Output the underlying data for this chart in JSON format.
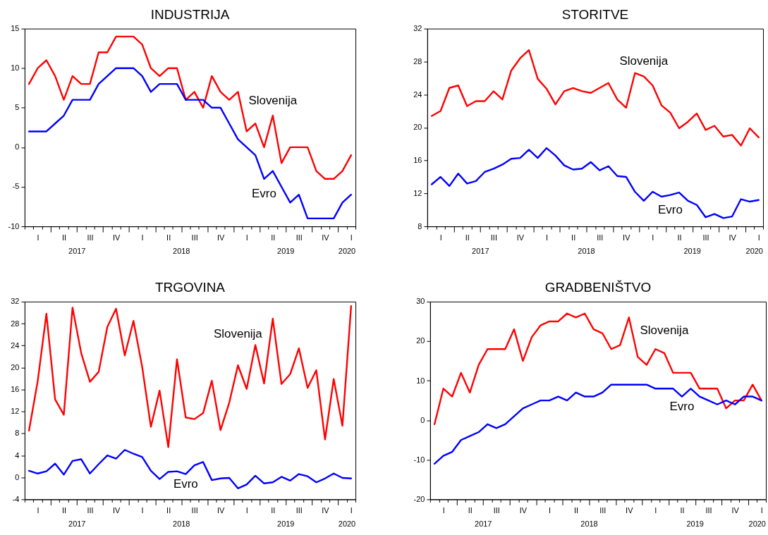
{
  "chart_data": [
    {
      "type": "line",
      "title": "INDUSTRIJA",
      "categories": [
        null,
        "I",
        null,
        null,
        "II",
        null,
        null,
        "III",
        null,
        null,
        "IV",
        null,
        null,
        "I",
        null,
        null,
        "II",
        null,
        null,
        "III",
        null,
        null,
        "IV",
        null,
        null,
        "I",
        null,
        null,
        "II",
        null,
        null,
        "III",
        null,
        null,
        "IV",
        null,
        null,
        "I"
      ],
      "x2lim": [
        "2016-12-16",
        "2020-02-16"
      ],
      "x2ticks": [
        {
          "value": "2017-06-16",
          "label": "2017"
        },
        {
          "value": "2018-06-16",
          "label": "2018"
        },
        {
          "value": "2019-06-16",
          "label": "2019"
        },
        {
          "value": "2020-01-16",
          "label": "2020"
        }
      ],
      "ylim": [
        -10,
        15
      ],
      "yticks": [
        -10,
        -5,
        0,
        5,
        10,
        15
      ],
      "series": [
        {
          "name": "Slovenija",
          "color": "#ff0000",
          "values": [
            8,
            10,
            11,
            9,
            6,
            9,
            8,
            8,
            12,
            12,
            14,
            14,
            14,
            13,
            10,
            9,
            10,
            10,
            6,
            7,
            5,
            9,
            7,
            6,
            7,
            2,
            3,
            0,
            4,
            -2,
            0,
            0,
            0,
            -3,
            -4,
            -4,
            -3,
            -1
          ]
        },
        {
          "name": "Evro",
          "color": "#0000ff",
          "values": [
            2,
            2,
            2,
            3,
            4,
            6,
            6,
            6,
            8,
            9,
            10,
            10,
            10,
            9,
            7,
            8,
            8,
            8,
            6,
            6,
            6,
            5,
            5,
            3,
            1,
            0,
            -1,
            -4,
            -3,
            -5,
            -7,
            -6,
            -9,
            -9,
            -9,
            -9,
            -7,
            -6
          ]
        }
      ]
    },
    {
      "type": "line",
      "title": "STORITVE",
      "categories": [
        null,
        "I",
        null,
        null,
        "II",
        null,
        null,
        "III",
        null,
        null,
        "IV",
        null,
        null,
        "I",
        null,
        null,
        "II",
        null,
        null,
        "III",
        null,
        null,
        "IV",
        null,
        null,
        "I",
        null,
        null,
        "II",
        null,
        null,
        "III",
        null,
        null,
        "IV",
        null,
        null,
        "I"
      ],
      "x2lim": [
        "2016-12-16",
        "2020-02-16"
      ],
      "x2ticks": [
        {
          "value": "2017-06-16",
          "label": "2017"
        },
        {
          "value": "2018-06-16",
          "label": "2018"
        },
        {
          "value": "2019-06-16",
          "label": "2019"
        },
        {
          "value": "2020-01-16",
          "label": "2020"
        }
      ],
      "ylim": [
        8,
        32
      ],
      "yticks": [
        8,
        12,
        16,
        20,
        24,
        28,
        32
      ],
      "series": [
        {
          "name": "Slovenija",
          "color": "#ff0000",
          "values": [
            21.4,
            22.0,
            24.8,
            25.1,
            22.6,
            23.2,
            23.2,
            24.4,
            23.4,
            26.9,
            28.4,
            29.4,
            25.9,
            24.7,
            22.8,
            24.4,
            24.8,
            24.4,
            24.2,
            24.8,
            25.4,
            23.4,
            22.4,
            26.6,
            26.2,
            25.1,
            22.7,
            21.8,
            19.9,
            20.7,
            21.7,
            19.7,
            20.2,
            18.9,
            19.1,
            17.8,
            19.9,
            18.8
          ]
        },
        {
          "name": "Evro",
          "color": "#0000ff",
          "values": [
            13.1,
            14.0,
            12.9,
            14.4,
            13.2,
            13.5,
            14.6,
            15.0,
            15.5,
            16.2,
            16.3,
            17.3,
            16.3,
            17.5,
            16.6,
            15.4,
            14.9,
            15.0,
            15.8,
            14.8,
            15.3,
            14.1,
            14.0,
            12.2,
            11.1,
            12.2,
            11.6,
            11.8,
            12.1,
            11.1,
            10.6,
            9.1,
            9.5,
            9.0,
            9.2,
            11.3,
            11.0,
            11.2
          ]
        }
      ]
    },
    {
      "type": "line",
      "title": "TRGOVINA",
      "categories": [
        null,
        "I",
        null,
        null,
        "II",
        null,
        null,
        "III",
        null,
        null,
        "IV",
        null,
        null,
        "I",
        null,
        null,
        "II",
        null,
        null,
        "III",
        null,
        null,
        "IV",
        null,
        null,
        "I",
        null,
        null,
        "II",
        null,
        null,
        "III",
        null,
        null,
        "IV",
        null,
        null,
        "I"
      ],
      "x2lim": [
        "2016-12-16",
        "2020-02-16"
      ],
      "x2ticks": [
        {
          "value": "2017-06-16",
          "label": "2017"
        },
        {
          "value": "2018-06-16",
          "label": "2018"
        },
        {
          "value": "2019-06-16",
          "label": "2019"
        },
        {
          "value": "2020-01-16",
          "label": "2020"
        }
      ],
      "ylim": [
        -4,
        32
      ],
      "yticks": [
        -4,
        0,
        4,
        8,
        12,
        16,
        20,
        24,
        28,
        32
      ],
      "series": [
        {
          "name": "Slovenija",
          "color": "#ff0000",
          "values": [
            8.5,
            17.5,
            29.8,
            14.2,
            11.4,
            30.9,
            22.6,
            17.4,
            19.2,
            27.4,
            30.7,
            22.2,
            28.5,
            20.1,
            9.2,
            15.8,
            5.5,
            21.5,
            10.9,
            10.6,
            11.7,
            17.6,
            8.6,
            13.6,
            20.4,
            16.1,
            24.1,
            17.1,
            28.9,
            17.0,
            18.8,
            23.5,
            16.3,
            19.5,
            6.9,
            17.9,
            9.4,
            31.2
          ]
        },
        {
          "name": "Evro",
          "color": "#0000ff",
          "values": [
            1.2,
            0.7,
            1.1,
            2.5,
            0.5,
            3.0,
            3.3,
            0.7,
            2.4,
            4.0,
            3.4,
            5.0,
            4.3,
            3.7,
            1.2,
            -0.3,
            1.0,
            1.1,
            0.6,
            2.2,
            2.8,
            -0.5,
            -0.2,
            -0.1,
            -2.0,
            -1.3,
            0.3,
            -1.1,
            -0.9,
            0.1,
            -0.6,
            0.6,
            0.2,
            -0.9,
            -0.2,
            0.7,
            -0.1,
            -0.2
          ]
        }
      ]
    },
    {
      "type": "line",
      "title": "GRADBENIŠTVO",
      "categories": [
        null,
        "I",
        null,
        null,
        "II",
        null,
        null,
        "III",
        null,
        null,
        "IV",
        null,
        null,
        "I",
        null,
        null,
        "II",
        null,
        null,
        "III",
        null,
        null,
        "IV",
        null,
        null,
        "I",
        null,
        null,
        "II",
        null,
        null,
        "III",
        null,
        null,
        "IV",
        null,
        null,
        "I"
      ],
      "x2lim": [
        "2016-12-16",
        "2020-02-16"
      ],
      "x2ticks": [
        {
          "value": "2017-06-16",
          "label": "2017"
        },
        {
          "value": "2018-06-16",
          "label": "2018"
        },
        {
          "value": "2019-06-16",
          "label": "2019"
        },
        {
          "value": "2020-01-16",
          "label": "2020"
        }
      ],
      "ylim": [
        -20,
        30
      ],
      "yticks": [
        -20,
        -10,
        0,
        10,
        20,
        30
      ],
      "series": [
        {
          "name": "Slovenija",
          "color": "#ff0000",
          "values": [
            -1,
            8,
            6,
            12,
            7,
            14,
            18,
            18,
            18,
            23,
            15,
            21,
            24,
            25,
            25,
            27,
            26,
            27,
            23,
            22,
            18,
            19,
            26,
            16,
            14,
            18,
            17,
            12,
            12,
            12,
            8,
            8,
            8,
            3,
            5,
            5,
            9,
            5
          ]
        },
        {
          "name": "Evro",
          "color": "#0000ff",
          "values": [
            -11,
            -9,
            -8,
            -5,
            -4,
            -3,
            -1,
            -2,
            -1,
            1,
            3,
            4,
            5,
            5,
            6,
            5,
            7,
            6,
            6,
            7,
            9,
            9,
            9,
            9,
            9,
            8,
            8,
            8,
            6,
            8,
            6,
            5,
            4,
            5,
            4,
            6,
            6,
            5
          ]
        }
      ]
    }
  ]
}
